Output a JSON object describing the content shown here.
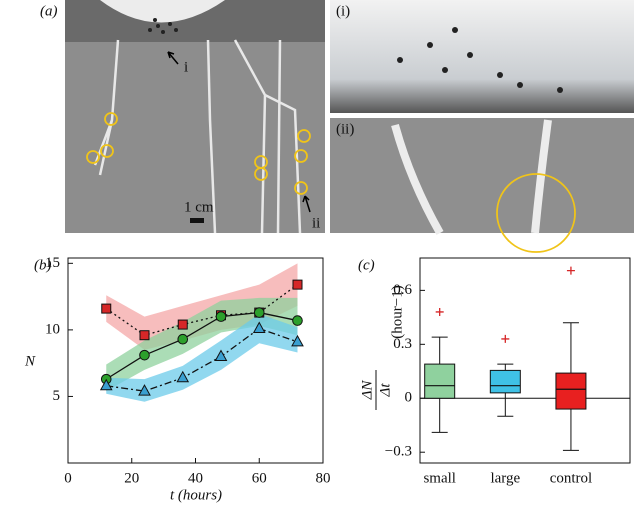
{
  "photo_panel": {
    "label": "(a)",
    "annotations": [
      "i",
      "ii"
    ],
    "scale_bar": "1 cm",
    "insets": [
      {
        "label": "(i)"
      },
      {
        "label": "(ii)"
      }
    ]
  },
  "chart_data": [
    {
      "type": "line",
      "panel_label": "(b)",
      "xlabel": "t (hours)",
      "ylabel": "N",
      "x": [
        12,
        24,
        36,
        48,
        60,
        72
      ],
      "series": [
        {
          "color": "#d62728",
          "marker": "square",
          "dash": "dotted",
          "values": [
            11.6,
            9.6,
            10.4,
            11.1,
            11.3,
            13.4
          ],
          "band_lower": [
            10.6,
            8.5,
            9.2,
            10.0,
            10.4,
            11.8
          ],
          "band_upper": [
            12.6,
            11.0,
            11.8,
            12.6,
            13.4,
            15.0
          ],
          "band_color": "#f4a7a7"
        },
        {
          "color": "#2ca02c",
          "marker": "circle",
          "dash": "solid",
          "values": [
            6.3,
            8.1,
            9.3,
            11.0,
            11.3,
            10.7
          ],
          "band_lower": [
            5.4,
            7.0,
            8.2,
            9.8,
            10.3,
            9.6
          ],
          "band_upper": [
            7.4,
            9.2,
            10.6,
            12.2,
            12.4,
            12.4
          ],
          "band_color": "#8fd19e"
        },
        {
          "color": "#3a9fd0",
          "marker": "triangle",
          "dash": "dashdot",
          "values": [
            5.8,
            5.4,
            6.4,
            8.0,
            10.1,
            9.1
          ],
          "band_lower": [
            5.2,
            4.6,
            5.5,
            7.0,
            9.0,
            8.3
          ],
          "band_upper": [
            6.4,
            6.3,
            7.3,
            9.2,
            11.2,
            10.2
          ],
          "band_color": "#6ccbea"
        }
      ],
      "xlim": [
        0,
        80
      ],
      "xticks": [
        0,
        20,
        40,
        60,
        80
      ],
      "ylim": [
        0,
        15.4
      ],
      "yticks": [
        5,
        10,
        15
      ]
    },
    {
      "type": "box",
      "panel_label": "(c)",
      "ylabel": {
        "numerator": "ΔN",
        "denominator": "Δt",
        "unit": "(hour−1)"
      },
      "categories": [
        "small",
        "large",
        "control"
      ],
      "colors": [
        "#8fd19e",
        "#3fc1e6",
        "#e82020"
      ],
      "boxes": [
        {
          "whisker_low": -0.19,
          "q1": 0.0,
          "median": 0.07,
          "q3": 0.19,
          "whisker_high": 0.34,
          "outliers": [
            0.48
          ]
        },
        {
          "whisker_low": -0.1,
          "q1": 0.03,
          "median": 0.07,
          "q3": 0.155,
          "whisker_high": 0.19,
          "outliers": [
            0.33
          ]
        },
        {
          "whisker_low": -0.29,
          "q1": -0.06,
          "median": 0.05,
          "q3": 0.14,
          "whisker_high": 0.42,
          "outliers": [
            0.71
          ]
        }
      ],
      "ylim": [
        -0.36,
        0.78
      ],
      "yticks": [
        0.6,
        0.3,
        0,
        {
          "value": -0.3,
          "label": "−0.3"
        }
      ]
    }
  ]
}
